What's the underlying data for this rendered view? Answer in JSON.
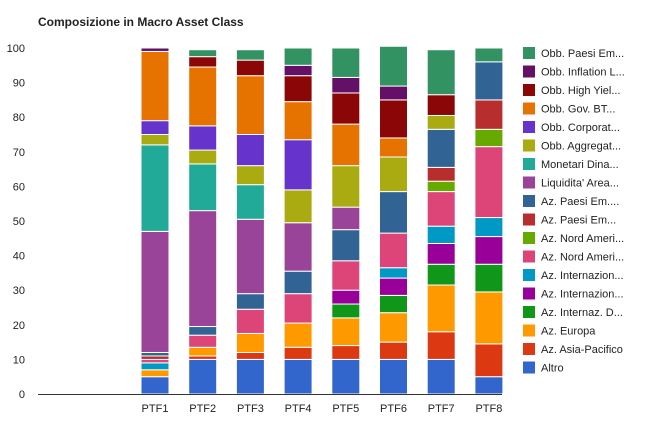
{
  "chart_data": {
    "type": "bar",
    "stacked": true,
    "title": "Composizione in Macro Asset Class",
    "xlabel": "",
    "ylabel": "",
    "ylim": [
      0,
      100
    ],
    "yticks": [
      0,
      10,
      20,
      30,
      40,
      50,
      60,
      70,
      80,
      90,
      100
    ],
    "grid": false,
    "legend_position": "right",
    "categories": [
      "PTF1",
      "PTF2",
      "PTF3",
      "PTF4",
      "PTF5",
      "PTF6",
      "PTF7",
      "PTF8"
    ],
    "series": [
      {
        "name": "Altro",
        "legend_label": "Altro",
        "color": "#3366cc",
        "values": [
          5,
          10,
          10,
          10,
          10,
          10,
          10,
          5
        ]
      },
      {
        "name": "Az. Asia-Pacifico",
        "legend_label": "Az. Asia-Pacifico",
        "color": "#dc3912",
        "values": [
          0,
          1,
          2,
          3.5,
          4,
          5,
          8,
          9.5
        ]
      },
      {
        "name": "Az. Europa",
        "legend_label": "Az. Europa",
        "color": "#ff9900",
        "values": [
          2,
          2.5,
          5.5,
          7,
          8,
          8.5,
          13.5,
          15
        ]
      },
      {
        "name": "Az. Internaz. D...",
        "legend_label": "Az. Internaz. D...",
        "color": "#109618",
        "values": [
          0,
          0,
          0,
          0,
          4,
          5,
          6,
          8
        ]
      },
      {
        "name": "Az. Internazion...",
        "legend_label": "Az. Internazion...",
        "color": "#990099",
        "values": [
          0,
          0,
          0,
          0,
          4,
          5,
          6,
          8
        ]
      },
      {
        "name": "Az. Internazion...",
        "legend_label": "Az. Internazion...",
        "color": "#0099c6",
        "values": [
          2,
          0,
          0,
          0,
          0,
          3,
          5,
          5.5
        ]
      },
      {
        "name": "Az. Nord Ameri...",
        "legend_label": "Az. Nord Ameri...",
        "color": "#dd4477",
        "values": [
          1,
          3.5,
          7,
          8.5,
          8.5,
          10,
          10,
          20.5
        ]
      },
      {
        "name": "Az. Nord Ameri...",
        "legend_label": "Az. Nord Ameri...",
        "color": "#66aa00",
        "values": [
          0,
          0,
          0,
          0,
          0,
          0,
          3,
          5
        ]
      },
      {
        "name": "Az. Paesi Em...",
        "legend_label": "Az. Paesi Em...",
        "color": "#b82e2e",
        "values": [
          1,
          0,
          0,
          0,
          0,
          0,
          4,
          8.5
        ]
      },
      {
        "name": "Az. Paesi Em...",
        "legend_label": "Az. Paesi Em....",
        "color": "#316395",
        "values": [
          1,
          2.5,
          4.5,
          6.5,
          9,
          12,
          11,
          11
        ]
      },
      {
        "name": "Liquidita' Area...",
        "legend_label": "Liquidita' Area...",
        "color": "#994499",
        "values": [
          35,
          33.5,
          21.5,
          14,
          6.5,
          0,
          0,
          0
        ]
      },
      {
        "name": "Monetari Dina...",
        "legend_label": "Monetari Dina...",
        "color": "#22aa99",
        "values": [
          25,
          13.5,
          10,
          0,
          0,
          0,
          0,
          0
        ]
      },
      {
        "name": "Obb. Aggregat...",
        "legend_label": "Obb. Aggregat...",
        "color": "#aaaa11",
        "values": [
          3,
          4,
          5.5,
          9.5,
          12,
          10,
          4,
          0
        ]
      },
      {
        "name": "Obb. Corporat...",
        "legend_label": "Obb. Corporat...",
        "color": "#6633cc",
        "values": [
          4,
          7,
          9,
          14.5,
          0,
          0,
          0,
          0
        ]
      },
      {
        "name": "Obb. Gov. BT...",
        "legend_label": "Obb. Gov. BT...",
        "color": "#e67300",
        "values": [
          20,
          17,
          17,
          11,
          12,
          5.5,
          0,
          0
        ]
      },
      {
        "name": "Obb. High Yiel...",
        "legend_label": "Obb. High Yiel...",
        "color": "#8b0707",
        "values": [
          0,
          3,
          4.5,
          7.5,
          9,
          11,
          6,
          0
        ]
      },
      {
        "name": "Obb. Inflation L...",
        "legend_label": "Obb. Inflation L...",
        "color": "#651067",
        "values": [
          1,
          0,
          0,
          3,
          4.5,
          4,
          0,
          0
        ]
      },
      {
        "name": "Obb. Paesi Em...",
        "legend_label": "Obb. Paesi Em...",
        "color": "#329262",
        "values": [
          0,
          2,
          3,
          5,
          8.5,
          11.5,
          13,
          4
        ]
      }
    ]
  }
}
